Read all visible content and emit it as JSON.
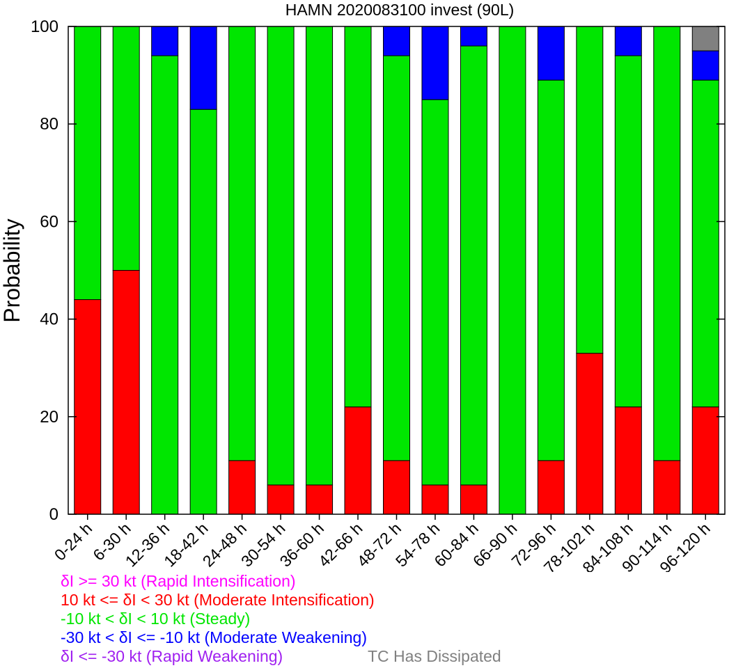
{
  "chart_data": {
    "type": "bar",
    "stacked": true,
    "title": "HAMN 2020083100 invest (90L)",
    "xlabel": "",
    "ylabel": "Probability",
    "ylim": [
      0,
      100
    ],
    "yticks": [
      0,
      20,
      40,
      60,
      80,
      100
    ],
    "grid": false,
    "categories": [
      "0-24 h",
      "6-30 h",
      "12-36 h",
      "18-42 h",
      "24-48 h",
      "30-54 h",
      "36-60 h",
      "42-66 h",
      "48-72 h",
      "54-78 h",
      "60-84 h",
      "66-90 h",
      "72-96 h",
      "78-102 h",
      "84-108 h",
      "90-114 h",
      "96-120 h"
    ],
    "series": [
      {
        "name": "δI >= 30 kt (Rapid Intensification)",
        "color": "#ff00ff",
        "values": [
          0,
          0,
          0,
          0,
          0,
          0,
          0,
          0,
          0,
          0,
          0,
          0,
          0,
          0,
          0,
          0,
          0
        ]
      },
      {
        "name": "10 kt <= δI < 30 kt (Moderate Intensification)",
        "color": "#ff0000",
        "values": [
          44,
          50,
          0,
          0,
          11,
          6,
          6,
          22,
          11,
          6,
          6,
          0,
          11,
          33,
          22,
          11,
          22
        ]
      },
      {
        "name": "-10 kt < δI < 10 kt (Steady)",
        "color": "#00e600",
        "values": [
          56,
          50,
          94,
          83,
          89,
          94,
          94,
          78,
          83,
          79,
          90,
          100,
          78,
          67,
          72,
          89,
          67
        ]
      },
      {
        "name": "-30 kt < δI <= -10 kt (Moderate Weakening)",
        "color": "#0000ff",
        "values": [
          0,
          0,
          6,
          17,
          0,
          0,
          0,
          0,
          6,
          15,
          4,
          0,
          11,
          0,
          6,
          0,
          6
        ]
      },
      {
        "name": "δI <= -30 kt (Rapid Weakening)",
        "color": "#a020f0",
        "values": [
          0,
          0,
          0,
          0,
          0,
          0,
          0,
          0,
          0,
          0,
          0,
          0,
          0,
          0,
          0,
          0,
          0
        ]
      },
      {
        "name": "TC Has Dissipated",
        "color": "#808080",
        "values": [
          0,
          0,
          0,
          0,
          0,
          0,
          0,
          0,
          0,
          0,
          0,
          0,
          0,
          0,
          0,
          0,
          5
        ]
      }
    ],
    "legend_placement": "bottom-left"
  }
}
